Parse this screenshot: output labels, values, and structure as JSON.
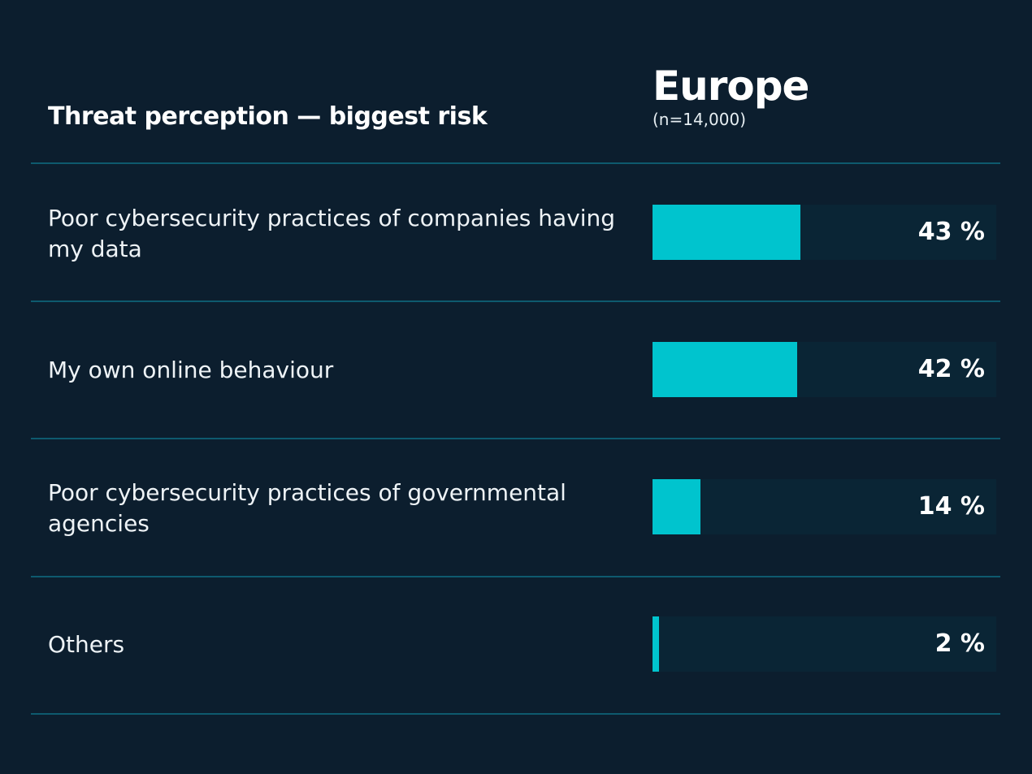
{
  "header": {
    "title": "Threat perception — biggest risk",
    "region": "Europe",
    "sample": "(n=14,000)"
  },
  "rows": [
    {
      "label": "Poor cybersecurity practices of companies having my data",
      "value": 43,
      "display": "43 %"
    },
    {
      "label": "My own online behaviour",
      "value": 42,
      "display": "42 %"
    },
    {
      "label": "Poor cybersecurity practices of governmental agencies",
      "value": 14,
      "display": "14 %"
    },
    {
      "label": "Others",
      "value": 2,
      "display": "2 %"
    }
  ],
  "colors": {
    "background": "#0c1e2e",
    "bar": "#00c4ce",
    "track": "#0a2535",
    "separator": "#0e5a6e"
  },
  "chart_data": {
    "type": "bar",
    "orientation": "horizontal",
    "title": "Threat perception — biggest risk",
    "subtitle": "Europe (n=14,000)",
    "categories": [
      "Poor cybersecurity practices of companies having my data",
      "My own online behaviour",
      "Poor cybersecurity practices of governmental agencies",
      "Others"
    ],
    "series": [
      {
        "name": "Europe",
        "values": [
          43,
          42,
          14,
          2
        ]
      }
    ],
    "unit": "%",
    "xlim": [
      0,
      100
    ],
    "grid": false,
    "legend": "none"
  }
}
